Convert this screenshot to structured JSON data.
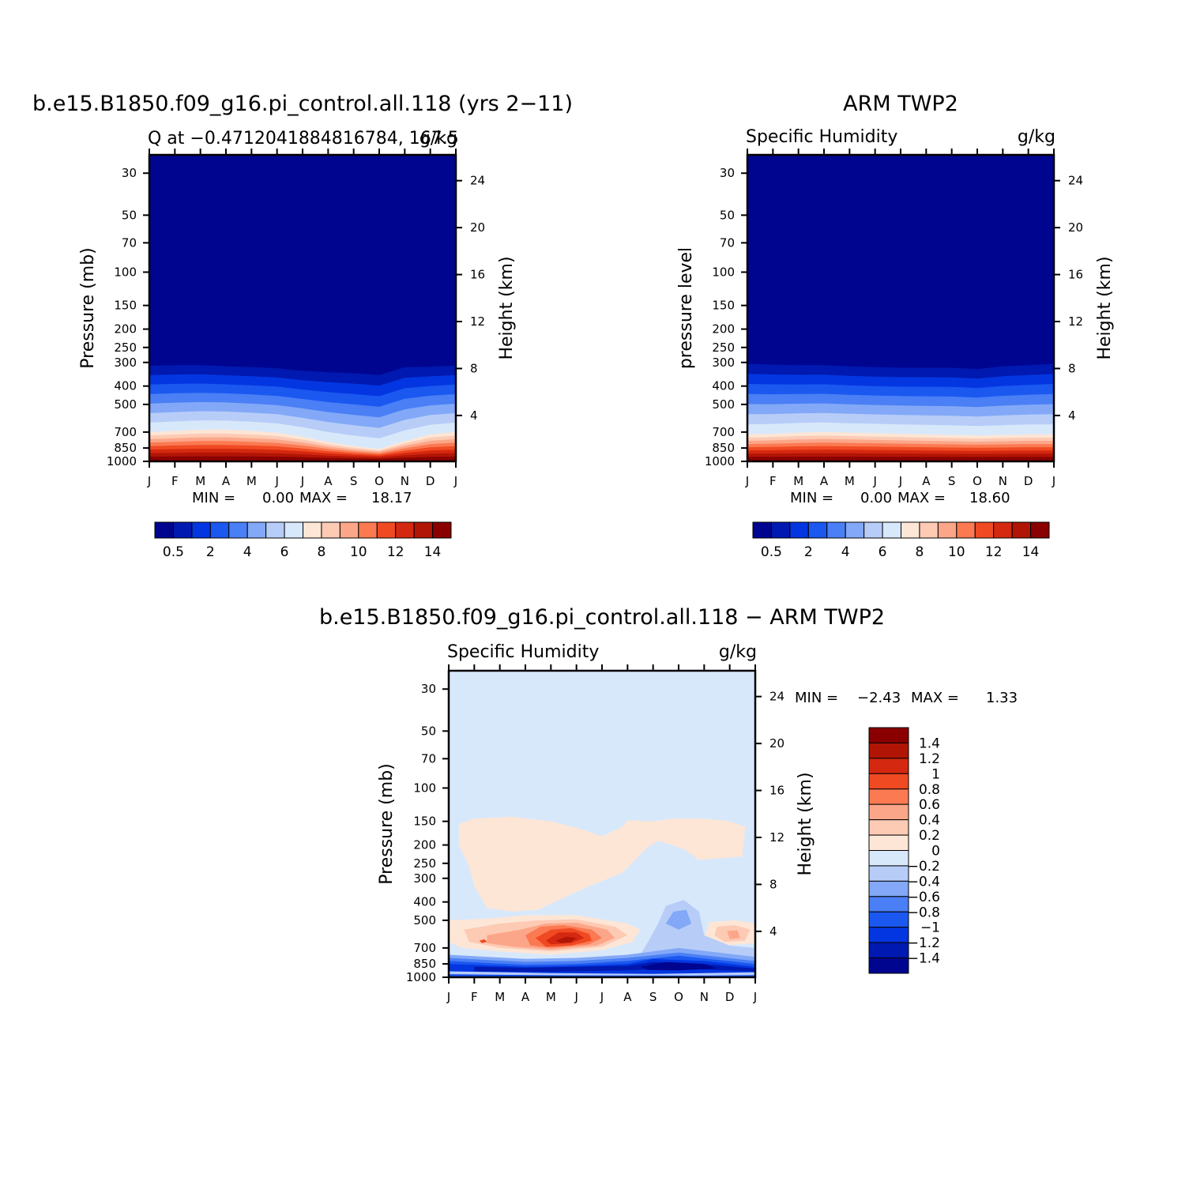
{
  "chart_data": [
    {
      "type": "heatmap",
      "title": "b.e15.B1850.f09_g16.pi_control.all.118 (yrs 2-11)",
      "left_subtitle": "Q at -0.4712041884816784, 167.5",
      "right_subtitle": "g/kg",
      "ylabel": "Pressure (mb)",
      "ylabel_right": "Height (km)",
      "x_ticks": [
        "J",
        "F",
        "M",
        "A",
        "M",
        "J",
        "J",
        "A",
        "S",
        "O",
        "N",
        "D",
        "J"
      ],
      "y_ticks": [
        30,
        50,
        70,
        100,
        150,
        200,
        250,
        300,
        400,
        500,
        700,
        850,
        1000
      ],
      "y_right_ticks": [
        24,
        20,
        16,
        12,
        8,
        4
      ],
      "y_scale": "log",
      "ylim": [
        1000,
        24
      ],
      "min_label": "MIN =",
      "min_value": "0.00",
      "max_label": "MAX =",
      "max_value": "18.17",
      "levels": [
        0.5,
        1,
        2,
        3,
        4,
        5,
        6,
        7,
        8,
        9,
        10,
        11,
        12,
        13,
        14
      ],
      "colorbar_labels": [
        "0.5",
        "2",
        "4",
        "6",
        "8",
        "10",
        "12",
        "14"
      ],
      "colors": [
        "#000590",
        "#0019b0",
        "#0336e0",
        "#1b58f0",
        "#4a7ff5",
        "#82a8f7",
        "#b7cdf8",
        "#d8e8fb",
        "#fde6d6",
        "#fdcab4",
        "#fca689",
        "#fb7a52",
        "#f04a23",
        "#d52810",
        "#b01505",
        "#8a0000"
      ],
      "surface_profile": [
        0,
        0,
        0,
        0,
        0,
        0,
        0,
        0,
        0,
        0,
        0,
        0,
        0
      ],
      "q_top_pressure": [
        312,
        310,
        310,
        314,
        318,
        322,
        332,
        338,
        342,
        350,
        318,
        316,
        312
      ],
      "q_8_pressure": [
        700,
        690,
        680,
        680,
        690,
        705,
        740,
        790,
        830,
        860,
        780,
        720,
        700
      ]
    },
    {
      "type": "heatmap",
      "title": "ARM TWP2",
      "left_subtitle": "Specific Humidity",
      "right_subtitle": "g/kg",
      "ylabel": "pressure level",
      "ylabel_right": "Height (km)",
      "x_ticks": [
        "J",
        "F",
        "M",
        "A",
        "M",
        "J",
        "J",
        "A",
        "S",
        "O",
        "N",
        "D",
        "J"
      ],
      "y_ticks": [
        30,
        50,
        70,
        100,
        150,
        200,
        250,
        300,
        400,
        500,
        700,
        850,
        1000
      ],
      "y_right_ticks": [
        24,
        20,
        16,
        12,
        8,
        4
      ],
      "y_scale": "log",
      "ylim": [
        1000,
        24
      ],
      "min_label": "MIN =",
      "min_value": "0.00",
      "max_label": "MAX =",
      "max_value": "18.60",
      "levels": [
        0.5,
        1,
        2,
        3,
        4,
        5,
        6,
        7,
        8,
        9,
        10,
        11,
        12,
        13,
        14
      ],
      "colorbar_labels": [
        "0.5",
        "2",
        "4",
        "6",
        "8",
        "10",
        "12",
        "14"
      ],
      "colors": [
        "#000590",
        "#0019b0",
        "#0336e0",
        "#1b58f0",
        "#4a7ff5",
        "#82a8f7",
        "#b7cdf8",
        "#d8e8fb",
        "#fde6d6",
        "#fdcab4",
        "#fca689",
        "#fb7a52",
        "#f04a23",
        "#d52810",
        "#b01505",
        "#8a0000"
      ],
      "q_top_pressure": [
        305,
        308,
        310,
        310,
        315,
        318,
        320,
        320,
        320,
        325,
        315,
        310,
        305
      ],
      "q_8_pressure": [
        720,
        715,
        705,
        700,
        705,
        710,
        715,
        720,
        725,
        730,
        725,
        720,
        720
      ]
    },
    {
      "type": "heatmap",
      "title": "b.e15.B1850.f09_g16.pi_control.all.118 - ARM TWP2",
      "left_subtitle": "Specific Humidity",
      "right_subtitle": "g/kg",
      "ylabel": "Pressure (mb)",
      "ylabel_right": "Height (km)",
      "x_ticks": [
        "J",
        "F",
        "M",
        "A",
        "M",
        "J",
        "J",
        "A",
        "S",
        "O",
        "N",
        "D",
        "J"
      ],
      "y_ticks": [
        30,
        50,
        70,
        100,
        150,
        200,
        250,
        300,
        400,
        500,
        700,
        850,
        1000
      ],
      "y_right_ticks": [
        24,
        20,
        16,
        12,
        8,
        4
      ],
      "y_scale": "log",
      "ylim": [
        1000,
        24
      ],
      "min_label": "MIN =",
      "min_value": "-2.43",
      "max_label": "MAX =",
      "max_value": "1.33",
      "levels": [
        -1.4,
        -1.2,
        -1,
        -0.8,
        -0.6,
        -0.4,
        -0.2,
        0,
        0.2,
        0.4,
        0.6,
        0.8,
        1,
        1.2,
        1.4
      ],
      "colorbar_labels": [
        "1.4",
        "1.2",
        "1",
        "0.8",
        "0.6",
        "0.4",
        "0.2",
        "0",
        "-0.2",
        "-0.4",
        "-0.6",
        "-0.8",
        "-1",
        "-1.2",
        "-1.4"
      ],
      "colors": [
        "#8a0000",
        "#b01505",
        "#d52810",
        "#f04a23",
        "#fb7a52",
        "#fca689",
        "#fdcab4",
        "#fde6d6",
        "#d8e8fb",
        "#b7cdf8",
        "#82a8f7",
        "#4a7ff5",
        "#1b58f0",
        "#0336e0",
        "#0019b0",
        "#000590"
      ]
    }
  ]
}
